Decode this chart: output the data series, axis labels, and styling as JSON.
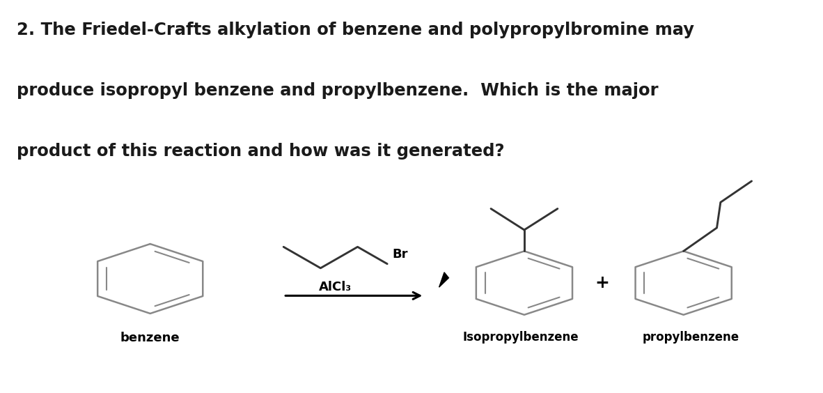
{
  "title_line1": "2. The Friedel-Crafts alkylation of benzene and polypropylbromine may",
  "title_line2": "produce isopropyl benzene and propylbenzene.  Which is the major",
  "title_line3": "product of this reaction and how was it generated?",
  "title_fontsize": 17.5,
  "title_color": "#1a1a1a",
  "fig_bg": "#ffffff",
  "panel_bg": "#dcdcdc",
  "benzene_label": "benzene",
  "isopropyl_label": "Isopropylbenzene",
  "propyl_label": "propylbenzene",
  "alcl3_label": "AlCl₃",
  "br_label": "Br",
  "color": "#333333",
  "lw": 1.8
}
